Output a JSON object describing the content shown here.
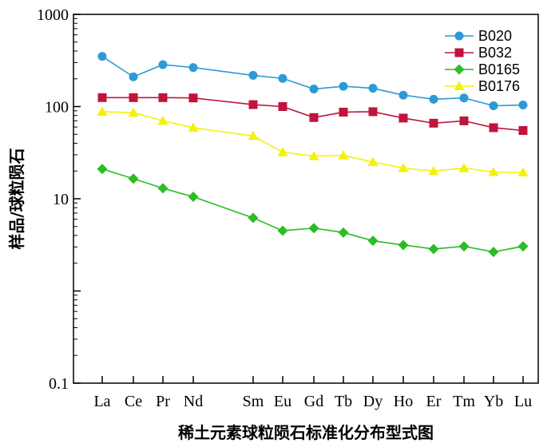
{
  "chart_data": {
    "type": "line",
    "title": "",
    "xlabel": "稀土元素球粒陨石标准化分布型式图",
    "ylabel": "样品/球粒陨石",
    "yscale": "log",
    "ylim": [
      0.1,
      1000
    ],
    "yticks": [
      "0.1",
      "10",
      "100",
      "1000"
    ],
    "grid": false,
    "legend_position": "top-right",
    "categories": [
      "La",
      "Ce",
      "Pr",
      "Nd",
      "Sm",
      "Eu",
      "Gd",
      "Tb",
      "Dy",
      "Ho",
      "Er",
      "Tm",
      "Yb",
      "Lu"
    ],
    "series": [
      {
        "name": "B020",
        "color": "#2b9ad6",
        "marker": "circle",
        "values": [
          350,
          210,
          285,
          265,
          218,
          202,
          155,
          166,
          158,
          133,
          120,
          124,
          102,
          104
        ]
      },
      {
        "name": "B032",
        "color": "#c0143c",
        "marker": "square",
        "values": [
          125,
          125,
          125,
          124,
          105,
          100,
          76,
          87,
          88,
          75,
          66,
          70,
          59,
          55
        ]
      },
      {
        "name": "B0165",
        "color": "#2bbd24",
        "marker": "diamond",
        "values": [
          21,
          16.5,
          13,
          10.5,
          6.2,
          4.5,
          4.8,
          4.3,
          3.5,
          3.15,
          2.85,
          3.05,
          2.65,
          3.05
        ]
      },
      {
        "name": "B0176",
        "color": "#f2f20a",
        "marker": "triangle",
        "values": [
          88,
          86,
          70,
          59,
          48,
          32,
          29,
          29.5,
          25,
          21.5,
          20,
          21.5,
          19.5,
          19.3
        ]
      }
    ]
  }
}
